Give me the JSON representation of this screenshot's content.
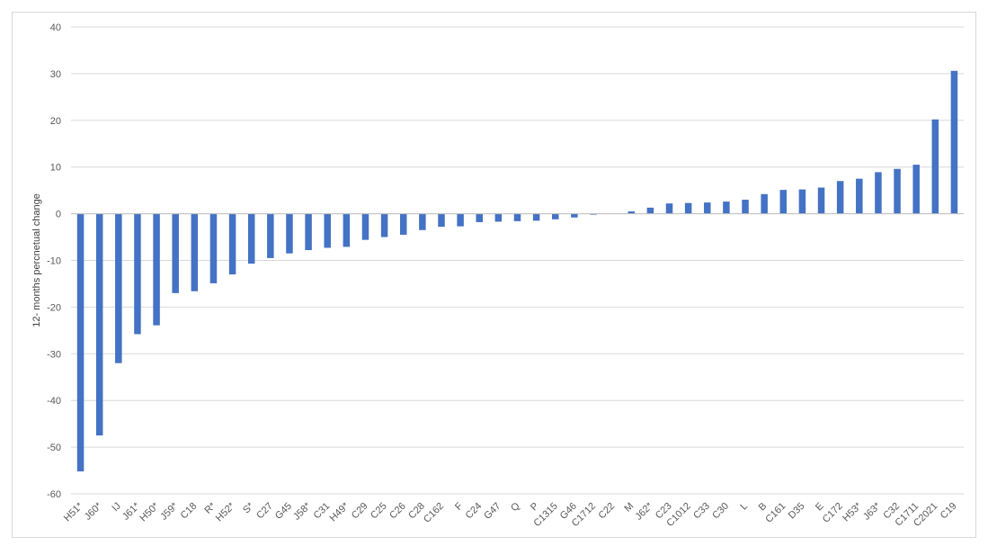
{
  "chart_data": {
    "type": "bar",
    "title": "",
    "xlabel": "",
    "ylabel": "12- months percnetual change",
    "ylim": [
      -60,
      40
    ],
    "yticks": [
      -60,
      -50,
      -40,
      -30,
      -20,
      -10,
      0,
      10,
      20,
      30,
      40
    ],
    "grid": true,
    "legend": "none",
    "bar_color": "#4472C4",
    "categories": [
      "H51*",
      "J60*",
      "IJ",
      "J61*",
      "H50*",
      "J59*",
      "C18",
      "R*",
      "H52*",
      "S*",
      "C27",
      "G45",
      "J58*",
      "C31",
      "H49*",
      "C29",
      "C25",
      "C26",
      "C28",
      "C162",
      "F",
      "C24",
      "G47",
      "Q",
      "P",
      "C1315",
      "G46",
      "C1712",
      "C22",
      "M",
      "J62*",
      "C23",
      "C1012",
      "C33",
      "C30",
      "L",
      "B",
      "C161",
      "D35",
      "E",
      "C172",
      "H53*",
      "J63*",
      "C32",
      "C1711",
      "C2021",
      "C19"
    ],
    "values": [
      -55.2,
      -47.5,
      -32.0,
      -25.8,
      -23.9,
      -17.0,
      -16.6,
      -14.9,
      -13.0,
      -10.7,
      -9.5,
      -8.5,
      -7.8,
      -7.3,
      -7.1,
      -5.6,
      -5.0,
      -4.5,
      -3.5,
      -2.8,
      -2.7,
      -1.8,
      -1.7,
      -1.6,
      -1.5,
      -1.2,
      -0.8,
      -0.2,
      0.0,
      0.5,
      1.3,
      2.2,
      2.3,
      2.4,
      2.6,
      3.0,
      4.2,
      5.1,
      5.2,
      5.6,
      7.0,
      7.5,
      8.9,
      9.6,
      10.5,
      20.2,
      30.6
    ]
  }
}
